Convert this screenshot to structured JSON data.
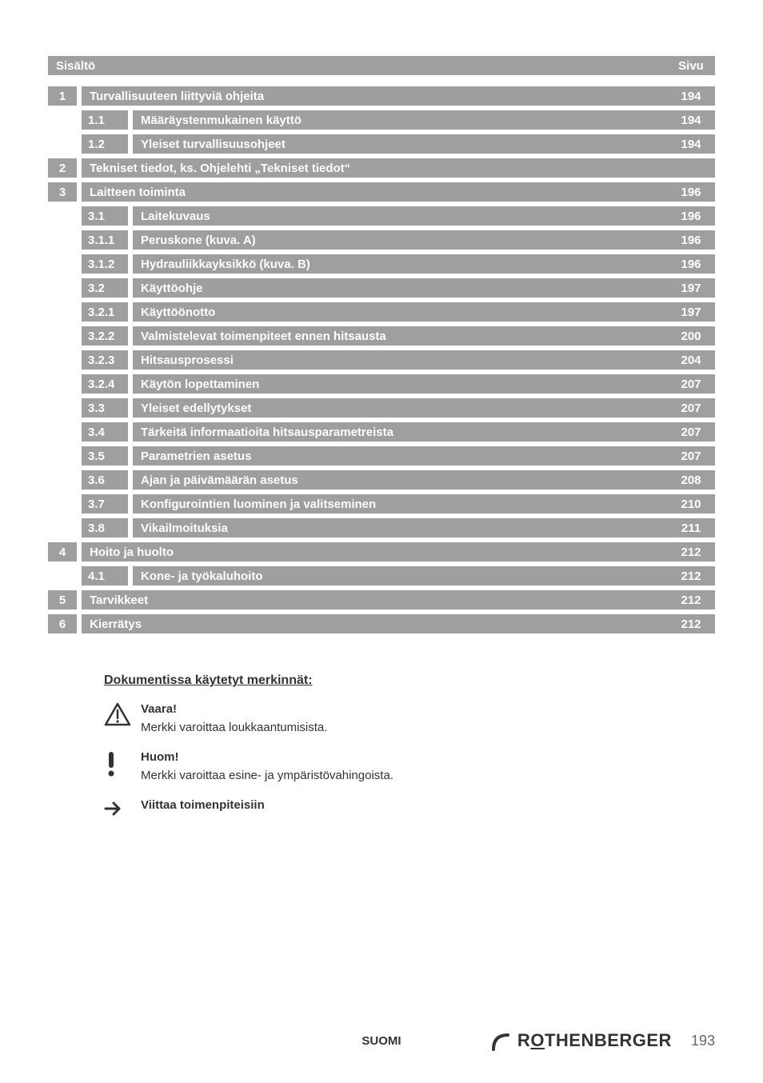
{
  "header": {
    "left": "Sisältö",
    "right": "Sivu"
  },
  "toc": [
    {
      "level": 1,
      "num": "1",
      "title": "Turvallisuuteen liittyviä ohjeita",
      "page": "194"
    },
    {
      "level": 2,
      "sub": "1.1",
      "title": "Määräystenmukainen käyttö",
      "page": "194"
    },
    {
      "level": 2,
      "sub": "1.2",
      "title": "Yleiset turvallisuusohjeet",
      "page": "194"
    },
    {
      "level": 1,
      "num": "2",
      "title": "Tekniset tiedot, ks. Ohjelehti „Tekniset tiedot“",
      "page": ""
    },
    {
      "level": 1,
      "num": "3",
      "title": "Laitteen toiminta",
      "page": "196"
    },
    {
      "level": 2,
      "sub": "3.1",
      "title": "Laitekuvaus",
      "page": "196"
    },
    {
      "level": 2,
      "sub": "3.1.1",
      "title": "Peruskone (kuva. A)",
      "page": "196"
    },
    {
      "level": 2,
      "sub": "3.1.2",
      "title": "Hydrauliikkayksikkö (kuva. B)",
      "page": "196"
    },
    {
      "level": 2,
      "sub": "3.2",
      "title": "Käyttöohje",
      "page": "197"
    },
    {
      "level": 2,
      "sub": "3.2.1",
      "title": "Käyttöönotto",
      "page": "197"
    },
    {
      "level": 2,
      "sub": "3.2.2",
      "title": "Valmistelevat toimenpiteet ennen hitsausta",
      "page": "200"
    },
    {
      "level": 2,
      "sub": "3.2.3",
      "title": "Hitsausprosessi",
      "page": "204"
    },
    {
      "level": 2,
      "sub": "3.2.4",
      "title": "Käytön lopettaminen",
      "page": "207"
    },
    {
      "level": 2,
      "sub": "3.3",
      "title": "Yleiset edellytykset",
      "page": "207"
    },
    {
      "level": 2,
      "sub": "3.4",
      "title": "Tärkeitä informaatioita hitsausparametreista",
      "page": "207"
    },
    {
      "level": 2,
      "sub": "3.5",
      "title": "Parametrien asetus",
      "page": "207"
    },
    {
      "level": 2,
      "sub": "3.6",
      "title": "Ajan ja päivämäärän asetus",
      "page": "208"
    },
    {
      "level": 2,
      "sub": "3.7",
      "title": "Konfigurointien luominen ja valitseminen",
      "page": "210"
    },
    {
      "level": 2,
      "sub": "3.8",
      "title": "Vikailmoituksia",
      "page": "211"
    },
    {
      "level": 1,
      "num": "4",
      "title": "Hoito ja huolto",
      "page": "212"
    },
    {
      "level": 2,
      "sub": "4.1",
      "title": "Kone- ja työkaluhoito",
      "page": "212"
    },
    {
      "level": 1,
      "num": "5",
      "title": "Tarvikkeet",
      "page": "212"
    },
    {
      "level": 1,
      "num": "6",
      "title": "Kierrätys",
      "page": "212"
    }
  ],
  "legend": {
    "heading": "Dokumentissa käytetyt merkinnät:",
    "items": [
      {
        "icon": "warning",
        "title": "Vaara!",
        "desc": "Merkki varoittaa loukkaantumisista."
      },
      {
        "icon": "exclaim",
        "title": "Huom!",
        "desc": "Merkki varoittaa esine- ja ympäristövahingoista."
      },
      {
        "icon": "arrow",
        "title": "Viittaa toimenpiteisiin",
        "desc": ""
      }
    ]
  },
  "footer": {
    "lang": "SUOMI",
    "brand": "ROTHENBERGER",
    "pagenum": "193"
  },
  "colors": {
    "row_bg": "#9f9f9f",
    "row_text": "#ffffff",
    "body_text": "#333333"
  }
}
